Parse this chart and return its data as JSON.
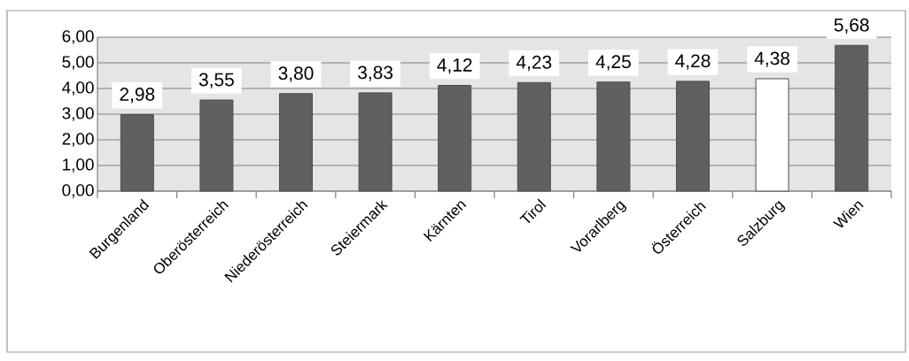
{
  "chart_data": {
    "type": "bar",
    "categories": [
      "Burgenland",
      "Oberösterreich",
      "Niederösterreich",
      "Steiermark",
      "Kärnten",
      "Tirol",
      "Vorarlberg",
      "Österreich",
      "Salzburg",
      "Wien"
    ],
    "values": [
      2.98,
      3.55,
      3.8,
      3.83,
      4.12,
      4.23,
      4.25,
      4.28,
      4.38,
      5.68
    ],
    "value_labels": [
      "2,98",
      "3,55",
      "3,80",
      "3,83",
      "4,12",
      "4,23",
      "4,25",
      "4,28",
      "4,38",
      "5,68"
    ],
    "colors": [
      "#606060",
      "#606060",
      "#606060",
      "#606060",
      "#606060",
      "#606060",
      "#606060",
      "#606060",
      "#ffffff",
      "#606060"
    ],
    "ylim": [
      0,
      6
    ],
    "yticks": [
      {
        "value": 0,
        "label": "0,00"
      },
      {
        "value": 1,
        "label": "1,00"
      },
      {
        "value": 2,
        "label": "2,00"
      },
      {
        "value": 3,
        "label": "3,00"
      },
      {
        "value": 4,
        "label": "4,00"
      },
      {
        "value": 5,
        "label": "5,00"
      },
      {
        "value": 6,
        "label": "6,00"
      }
    ],
    "grid": "y"
  }
}
